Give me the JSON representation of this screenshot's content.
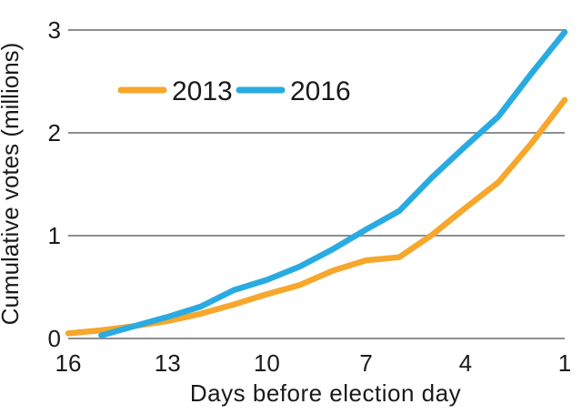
{
  "chart": {
    "y_axis_title": "Cumulative votes (millions)",
    "x_axis_title": "Days before election day",
    "legend": {
      "items": [
        {
          "label": "2013",
          "color": "#F6A72C"
        },
        {
          "label": "2016",
          "color": "#29ABE2"
        }
      ]
    },
    "colors": {
      "grid": "#8E8E8E",
      "text": "#1A1A1A",
      "background": "#FFFFFF",
      "series_2013": "#F6A72C",
      "series_2016": "#29ABE2"
    }
  },
  "chart_data": {
    "type": "line",
    "title": "",
    "xlabel": "Days before election day",
    "ylabel": "Cumulative votes (millions)",
    "x_axis_reversed": true,
    "xlim": [
      16,
      1
    ],
    "ylim": [
      0,
      3
    ],
    "x_ticks": [
      16,
      13,
      10,
      7,
      4,
      1
    ],
    "y_ticks": [
      0,
      1,
      2,
      3
    ],
    "grid": "horizontal-only",
    "legend_position": "top-left-inside",
    "series": [
      {
        "name": "2013",
        "color": "#F6A72C",
        "x": [
          16,
          15,
          14,
          13,
          12,
          11,
          10,
          9,
          8,
          7,
          6,
          5,
          4,
          3,
          2,
          1
        ],
        "values": [
          0.05,
          0.08,
          0.12,
          0.17,
          0.24,
          0.33,
          0.43,
          0.52,
          0.66,
          0.76,
          0.79,
          1.01,
          1.27,
          1.52,
          1.9,
          2.32
        ]
      },
      {
        "name": "2016",
        "color": "#29ABE2",
        "x": [
          15,
          14,
          13,
          12,
          11,
          10,
          9,
          8,
          7,
          6,
          5,
          4,
          3,
          2,
          1
        ],
        "values": [
          0.03,
          0.12,
          0.21,
          0.31,
          0.47,
          0.57,
          0.7,
          0.87,
          1.06,
          1.24,
          1.57,
          1.87,
          2.16,
          2.58,
          2.98
        ]
      }
    ]
  }
}
